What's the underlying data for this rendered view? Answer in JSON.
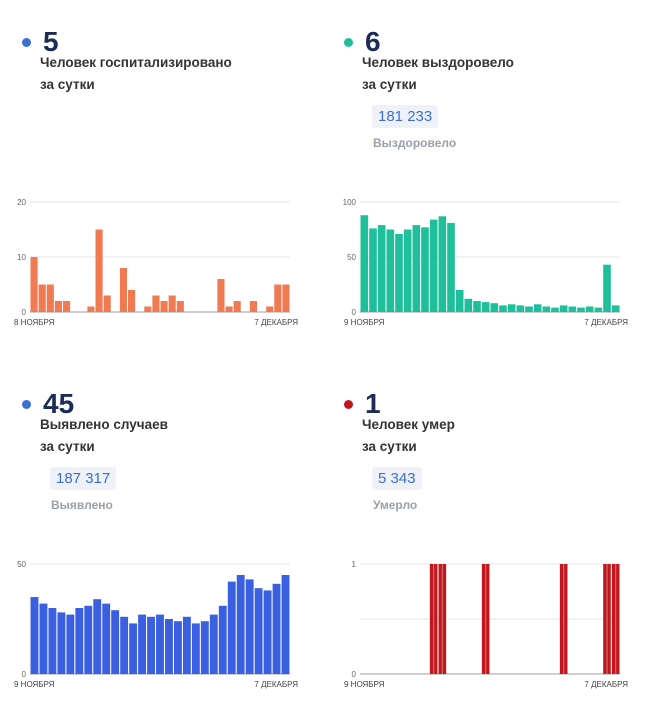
{
  "panels": [
    {
      "number": "5",
      "desc_line1": "Человек госпитализировано",
      "desc_line2": "за сутки",
      "dot_color": "#3a6fd8",
      "total": "",
      "total_label": ""
    },
    {
      "number": "6",
      "desc_line1": "Человек выздоровело",
      "desc_line2": "за сутки",
      "dot_color": "#1fbf9c",
      "total": "181 233",
      "total_label": "Выздоровело"
    },
    {
      "number": "45",
      "desc_line1": "Выявлено случаев",
      "desc_line2": "за сутки",
      "dot_color": "#3a6fd8",
      "total": "187 317",
      "total_label": "Выявлено"
    },
    {
      "number": "1",
      "desc_line1": "Человек умер",
      "desc_line2": "за сутки",
      "dot_color": "#c0171e",
      "total": "5 343",
      "total_label": "Умерло"
    }
  ],
  "chart_data": [
    {
      "type": "bar",
      "color": "#f07a52",
      "grid": true,
      "ylim": [
        0,
        20
      ],
      "yticks": [
        "0",
        "10",
        "20"
      ],
      "xlabel_start": "8 НОЯБРЯ",
      "xlabel_end": "7 ДЕКАБРЯ",
      "values": [
        10,
        5,
        5,
        2,
        2,
        0,
        0,
        1,
        15,
        3,
        0,
        8,
        4,
        0,
        1,
        3,
        2,
        3,
        2,
        0,
        0,
        0,
        0,
        6,
        1,
        2,
        0,
        2,
        0,
        1,
        5,
        5
      ]
    },
    {
      "type": "bar",
      "color": "#1fbf9c",
      "grid": true,
      "ylim": [
        0,
        100
      ],
      "yticks": [
        "0",
        "50",
        "100"
      ],
      "xlabel_start": "9 НОЯБРЯ",
      "xlabel_end": "7 ДЕКАБРЯ",
      "values": [
        88,
        76,
        79,
        75,
        71,
        75,
        79,
        77,
        84,
        87,
        81,
        20,
        12,
        10,
        9,
        8,
        6,
        7,
        6,
        5,
        7,
        5,
        4,
        6,
        5,
        4,
        5,
        4,
        43,
        6
      ]
    },
    {
      "type": "bar",
      "color": "#3a5fe0",
      "grid": true,
      "ylim": [
        0,
        50
      ],
      "yticks": [
        "0",
        "50"
      ],
      "xlabel_start": "9 НОЯБРЯ",
      "xlabel_end": "7 ДЕКАБРЯ",
      "values": [
        35,
        32,
        30,
        28,
        27,
        30,
        31,
        34,
        32,
        29,
        26,
        23,
        27,
        26,
        27,
        25,
        24,
        26,
        23,
        24,
        27,
        31,
        42,
        45,
        43,
        39,
        38,
        41,
        45
      ]
    },
    {
      "type": "bar",
      "color": "#c0171e",
      "grid": true,
      "ylim": [
        0,
        1
      ],
      "yticks": [
        "0",
        "1"
      ],
      "xlabel_start": "9 НОЯБРЯ",
      "xlabel_end": "7 ДЕКАБРЯ",
      "values": [
        0,
        0,
        0,
        0,
        0,
        0,
        0,
        0,
        1,
        1,
        0,
        0,
        0,
        0,
        1,
        0,
        0,
        0,
        0,
        0,
        0,
        0,
        0,
        1,
        0,
        0,
        0,
        0,
        1,
        1
      ]
    }
  ]
}
